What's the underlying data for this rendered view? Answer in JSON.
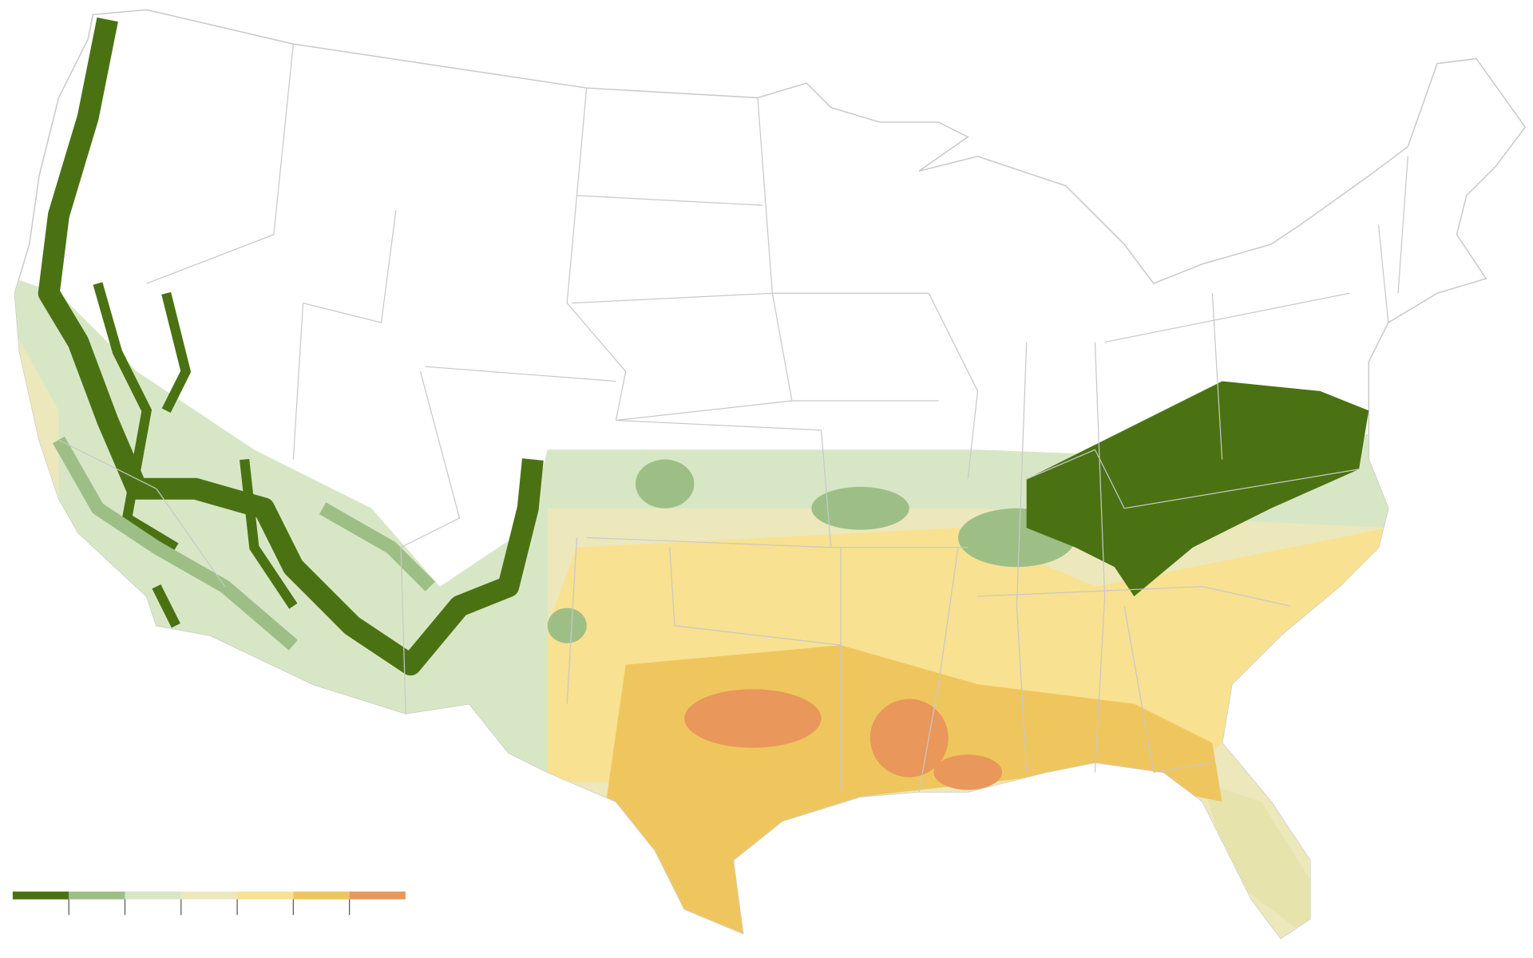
{
  "legend": {
    "colors": [
      "#4a7212",
      "#9dbf86",
      "#d7e7c6",
      "#ece8bc",
      "#f8e190",
      "#efc65e",
      "#e9975a"
    ]
  }
}
